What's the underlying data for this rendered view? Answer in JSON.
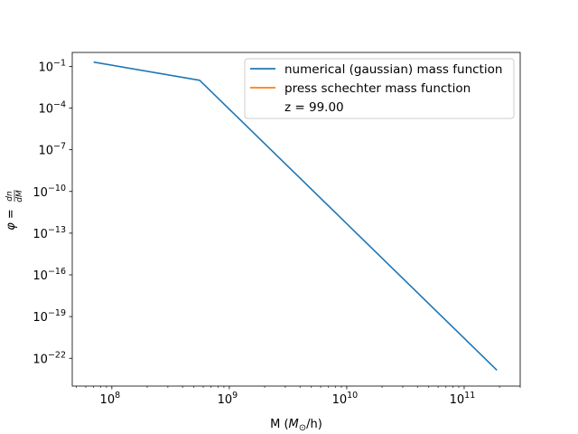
{
  "chart_data": {
    "type": "line",
    "title": "",
    "xlabel": "M (M⊙/h)",
    "ylabel": "φ = dn/dM",
    "xscale": "log",
    "yscale": "log",
    "xlim": [
      46000000.0,
      300000000000.0
    ],
    "ylim": [
      1e-24,
      1.0
    ],
    "grid": false,
    "legend_position": "top-right",
    "x_ticks": [
      {
        "value": 100000000.0,
        "base": "10",
        "exp": "8"
      },
      {
        "value": 1000000000.0,
        "base": "10",
        "exp": "9"
      },
      {
        "value": 10000000000.0,
        "base": "10",
        "exp": "10"
      },
      {
        "value": 100000000000.0,
        "base": "10",
        "exp": "11"
      }
    ],
    "y_ticks": [
      {
        "value": 0.1,
        "base": "10",
        "exp": "−1"
      },
      {
        "value": 0.0001,
        "base": "10",
        "exp": "−4"
      },
      {
        "value": 1e-07,
        "base": "10",
        "exp": "−7"
      },
      {
        "value": 1e-10,
        "base": "10",
        "exp": "−10"
      },
      {
        "value": 1e-13,
        "base": "10",
        "exp": "−13"
      },
      {
        "value": 1e-16,
        "base": "10",
        "exp": "−16"
      },
      {
        "value": 1e-19,
        "base": "10",
        "exp": "−19"
      },
      {
        "value": 1e-22,
        "base": "10",
        "exp": "−22"
      }
    ],
    "series": [
      {
        "name": "numerical (gaussian) mass function",
        "color": "#1f77b4",
        "x": [
          70000000.0,
          560000000.0,
          190000000000.0
        ],
        "y": [
          0.2,
          0.01,
          1.4e-23
        ]
      },
      {
        "name": "press schechter mass function",
        "color": "#ff7f0e",
        "x": [],
        "y": []
      }
    ],
    "legend_extra": "z = 99.00"
  }
}
